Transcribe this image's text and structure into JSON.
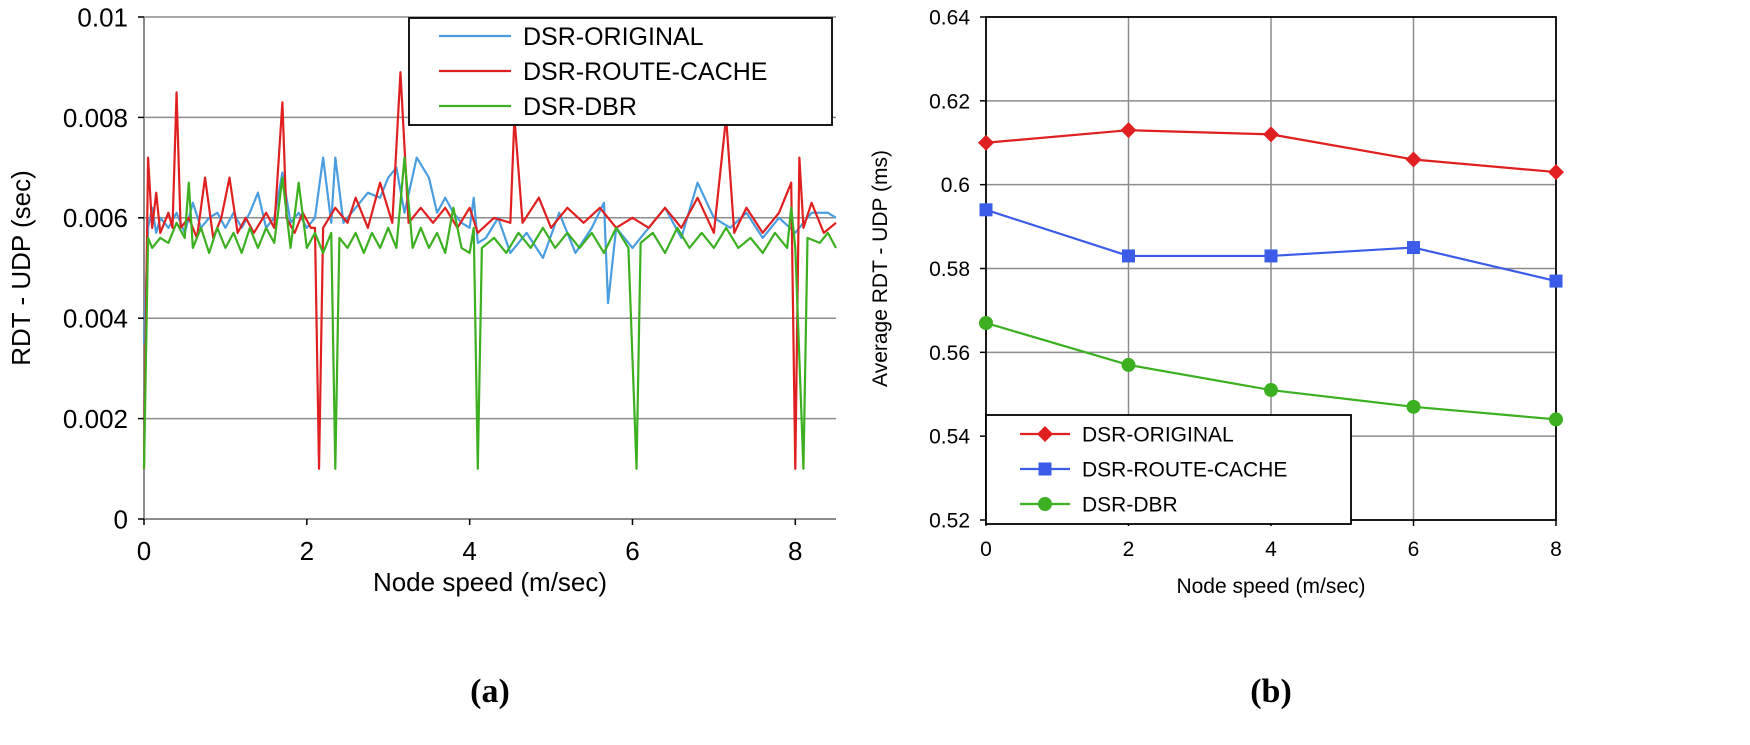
{
  "chart_data": [
    {
      "type": "line",
      "panel_label": "(a)",
      "xlabel": "Node speed (m/sec)",
      "ylabel": "RDT - UDP (sec)",
      "xlim": [
        0,
        8.5
      ],
      "ylim": [
        0,
        0.01
      ],
      "x_ticks": [
        0,
        2,
        4,
        6,
        8
      ],
      "y_ticks": [
        0,
        0.002,
        0.004,
        0.006,
        0.008,
        0.01
      ],
      "x_tick_labels": [
        "0",
        "2",
        "4",
        "6",
        "8"
      ],
      "y_tick_labels": [
        "0",
        "0.002",
        "0.004",
        "0.006",
        "0.008",
        "0.01"
      ],
      "grid": "horizontal",
      "legend_position": "top-right",
      "series": [
        {
          "name": "DSR-ORIGINAL",
          "color": "#4a9ee0",
          "points": [
            [
              0.0,
              0.0035
            ],
            [
              0.05,
              0.0058
            ],
            [
              0.1,
              0.0062
            ],
            [
              0.15,
              0.0057
            ],
            [
              0.2,
              0.006
            ],
            [
              0.3,
              0.0058
            ],
            [
              0.4,
              0.0061
            ],
            [
              0.5,
              0.0057
            ],
            [
              0.6,
              0.0063
            ],
            [
              0.7,
              0.0058
            ],
            [
              0.8,
              0.006
            ],
            [
              0.9,
              0.0061
            ],
            [
              1.0,
              0.0058
            ],
            [
              1.1,
              0.0061
            ],
            [
              1.2,
              0.0058
            ],
            [
              1.3,
              0.0061
            ],
            [
              1.4,
              0.0065
            ],
            [
              1.5,
              0.0058
            ],
            [
              1.6,
              0.006
            ],
            [
              1.7,
              0.0069
            ],
            [
              1.8,
              0.0059
            ],
            [
              1.9,
              0.0061
            ],
            [
              2.0,
              0.0058
            ],
            [
              2.1,
              0.006
            ],
            [
              2.2,
              0.0072
            ],
            [
              2.3,
              0.0059
            ],
            [
              2.35,
              0.0072
            ],
            [
              2.45,
              0.0059
            ],
            [
              2.6,
              0.0062
            ],
            [
              2.75,
              0.0065
            ],
            [
              2.9,
              0.0064
            ],
            [
              3.0,
              0.0068
            ],
            [
              3.1,
              0.007
            ],
            [
              3.2,
              0.0061
            ],
            [
              3.35,
              0.0072
            ],
            [
              3.5,
              0.0068
            ],
            [
              3.6,
              0.0061
            ],
            [
              3.7,
              0.0064
            ],
            [
              3.8,
              0.0061
            ],
            [
              3.9,
              0.0059
            ],
            [
              4.0,
              0.0058
            ],
            [
              4.05,
              0.0064
            ],
            [
              4.1,
              0.0055
            ],
            [
              4.2,
              0.0056
            ],
            [
              4.35,
              0.006
            ],
            [
              4.5,
              0.0053
            ],
            [
              4.7,
              0.0057
            ],
            [
              4.9,
              0.0052
            ],
            [
              5.1,
              0.0061
            ],
            [
              5.3,
              0.0053
            ],
            [
              5.5,
              0.0058
            ],
            [
              5.65,
              0.0063
            ],
            [
              5.7,
              0.0043
            ],
            [
              5.8,
              0.0058
            ],
            [
              6.0,
              0.0054
            ],
            [
              6.2,
              0.0058
            ],
            [
              6.4,
              0.0062
            ],
            [
              6.6,
              0.0056
            ],
            [
              6.8,
              0.0067
            ],
            [
              7.0,
              0.006
            ],
            [
              7.2,
              0.0058
            ],
            [
              7.4,
              0.0061
            ],
            [
              7.6,
              0.0056
            ],
            [
              7.8,
              0.006
            ],
            [
              8.0,
              0.0057
            ],
            [
              8.2,
              0.0061
            ],
            [
              8.4,
              0.0061
            ],
            [
              8.5,
              0.006
            ]
          ]
        },
        {
          "name": "DSR-ROUTE-CACHE",
          "color": "#e02020",
          "points": [
            [
              0.0,
              0.001
            ],
            [
              0.05,
              0.0072
            ],
            [
              0.1,
              0.0058
            ],
            [
              0.15,
              0.0065
            ],
            [
              0.2,
              0.0057
            ],
            [
              0.3,
              0.0061
            ],
            [
              0.35,
              0.0058
            ],
            [
              0.4,
              0.0085
            ],
            [
              0.45,
              0.0058
            ],
            [
              0.55,
              0.006
            ],
            [
              0.65,
              0.0056
            ],
            [
              0.75,
              0.0068
            ],
            [
              0.85,
              0.0056
            ],
            [
              0.95,
              0.006
            ],
            [
              1.05,
              0.0068
            ],
            [
              1.15,
              0.0057
            ],
            [
              1.25,
              0.006
            ],
            [
              1.35,
              0.0057
            ],
            [
              1.5,
              0.0061
            ],
            [
              1.6,
              0.0058
            ],
            [
              1.7,
              0.0083
            ],
            [
              1.75,
              0.006
            ],
            [
              1.85,
              0.0057
            ],
            [
              1.95,
              0.0061
            ],
            [
              2.05,
              0.0058
            ],
            [
              2.1,
              0.0058
            ],
            [
              2.15,
              0.001
            ],
            [
              2.2,
              0.0058
            ],
            [
              2.35,
              0.0062
            ],
            [
              2.5,
              0.0059
            ],
            [
              2.6,
              0.0064
            ],
            [
              2.75,
              0.0058
            ],
            [
              2.9,
              0.0067
            ],
            [
              3.05,
              0.0059
            ],
            [
              3.15,
              0.0089
            ],
            [
              3.25,
              0.0059
            ],
            [
              3.4,
              0.0062
            ],
            [
              3.55,
              0.0059
            ],
            [
              3.7,
              0.0062
            ],
            [
              3.85,
              0.0058
            ],
            [
              4.0,
              0.0062
            ],
            [
              4.1,
              0.0057
            ],
            [
              4.3,
              0.006
            ],
            [
              4.5,
              0.0059
            ],
            [
              4.55,
              0.008
            ],
            [
              4.65,
              0.0059
            ],
            [
              4.85,
              0.0064
            ],
            [
              5.0,
              0.0058
            ],
            [
              5.2,
              0.0062
            ],
            [
              5.4,
              0.0059
            ],
            [
              5.6,
              0.0062
            ],
            [
              5.8,
              0.0058
            ],
            [
              6.0,
              0.006
            ],
            [
              6.2,
              0.0058
            ],
            [
              6.4,
              0.0062
            ],
            [
              6.6,
              0.0058
            ],
            [
              6.8,
              0.0064
            ],
            [
              7.0,
              0.0057
            ],
            [
              7.15,
              0.008
            ],
            [
              7.25,
              0.0057
            ],
            [
              7.4,
              0.0062
            ],
            [
              7.6,
              0.0057
            ],
            [
              7.8,
              0.0061
            ],
            [
              7.95,
              0.0067
            ],
            [
              8.0,
              0.001
            ],
            [
              8.05,
              0.0072
            ],
            [
              8.1,
              0.0058
            ],
            [
              8.2,
              0.0063
            ],
            [
              8.35,
              0.0057
            ],
            [
              8.5,
              0.0059
            ]
          ]
        },
        {
          "name": "DSR-DBR",
          "color": "#3cb020",
          "points": [
            [
              0.0,
              0.001
            ],
            [
              0.05,
              0.0056
            ],
            [
              0.1,
              0.0054
            ],
            [
              0.2,
              0.0056
            ],
            [
              0.3,
              0.0055
            ],
            [
              0.4,
              0.0059
            ],
            [
              0.5,
              0.0056
            ],
            [
              0.55,
              0.0067
            ],
            [
              0.6,
              0.0054
            ],
            [
              0.7,
              0.0058
            ],
            [
              0.8,
              0.0053
            ],
            [
              0.9,
              0.0058
            ],
            [
              1.0,
              0.0054
            ],
            [
              1.1,
              0.0057
            ],
            [
              1.2,
              0.0053
            ],
            [
              1.3,
              0.0058
            ],
            [
              1.4,
              0.0054
            ],
            [
              1.5,
              0.0058
            ],
            [
              1.6,
              0.0055
            ],
            [
              1.7,
              0.0068
            ],
            [
              1.8,
              0.0054
            ],
            [
              1.9,
              0.0067
            ],
            [
              2.0,
              0.0054
            ],
            [
              2.1,
              0.0057
            ],
            [
              2.2,
              0.0053
            ],
            [
              2.3,
              0.0057
            ],
            [
              2.35,
              0.001
            ],
            [
              2.4,
              0.0056
            ],
            [
              2.5,
              0.0054
            ],
            [
              2.6,
              0.0057
            ],
            [
              2.7,
              0.0053
            ],
            [
              2.8,
              0.0057
            ],
            [
              2.9,
              0.0054
            ],
            [
              3.0,
              0.0058
            ],
            [
              3.1,
              0.0054
            ],
            [
              3.2,
              0.0072
            ],
            [
              3.3,
              0.0054
            ],
            [
              3.4,
              0.0058
            ],
            [
              3.5,
              0.0054
            ],
            [
              3.6,
              0.0057
            ],
            [
              3.7,
              0.0053
            ],
            [
              3.8,
              0.0062
            ],
            [
              3.9,
              0.0054
            ],
            [
              4.0,
              0.0053
            ],
            [
              4.05,
              0.0058
            ],
            [
              4.1,
              0.001
            ],
            [
              4.15,
              0.0054
            ],
            [
              4.3,
              0.0056
            ],
            [
              4.45,
              0.0053
            ],
            [
              4.6,
              0.0057
            ],
            [
              4.75,
              0.0054
            ],
            [
              4.9,
              0.0058
            ],
            [
              5.05,
              0.0054
            ],
            [
              5.2,
              0.0057
            ],
            [
              5.35,
              0.0054
            ],
            [
              5.5,
              0.0057
            ],
            [
              5.65,
              0.0053
            ],
            [
              5.8,
              0.0058
            ],
            [
              5.95,
              0.0054
            ],
            [
              6.05,
              0.001
            ],
            [
              6.1,
              0.0055
            ],
            [
              6.25,
              0.0057
            ],
            [
              6.4,
              0.0053
            ],
            [
              6.55,
              0.0058
            ],
            [
              6.7,
              0.0054
            ],
            [
              6.85,
              0.0057
            ],
            [
              7.0,
              0.0054
            ],
            [
              7.15,
              0.0058
            ],
            [
              7.3,
              0.0054
            ],
            [
              7.45,
              0.0056
            ],
            [
              7.6,
              0.0053
            ],
            [
              7.75,
              0.0057
            ],
            [
              7.9,
              0.0054
            ],
            [
              7.95,
              0.0062
            ],
            [
              8.0,
              0.0054
            ],
            [
              8.1,
              0.001
            ],
            [
              8.15,
              0.0056
            ],
            [
              8.3,
              0.0055
            ],
            [
              8.4,
              0.0057
            ],
            [
              8.5,
              0.0054
            ]
          ]
        }
      ]
    },
    {
      "type": "line",
      "panel_label": "(b)",
      "xlabel": "Node speed (m/sec)",
      "ylabel": "Average RDT - UDP (ms)",
      "xlim": [
        0,
        8
      ],
      "ylim": [
        0.52,
        0.64
      ],
      "x_ticks": [
        0,
        2,
        4,
        6,
        8
      ],
      "y_ticks": [
        0.52,
        0.54,
        0.56,
        0.58,
        0.6,
        0.62,
        0.64
      ],
      "x_tick_labels": [
        "0",
        "2",
        "4",
        "6",
        "8"
      ],
      "y_tick_labels": [
        "0.52",
        "0.54",
        "0.56",
        "0.58",
        "0.6",
        "0.62",
        "0.64"
      ],
      "grid": "both",
      "legend_position": "bottom-left",
      "series": [
        {
          "name": "DSR-ORIGINAL",
          "color": "#e02020",
          "marker": "diamond",
          "x": [
            0,
            2,
            4,
            6,
            8
          ],
          "values": [
            0.61,
            0.613,
            0.612,
            0.606,
            0.603
          ]
        },
        {
          "name": "DSR-ROUTE-CACHE",
          "color": "#3b5ce8",
          "marker": "square",
          "x": [
            0,
            2,
            4,
            6,
            8
          ],
          "values": [
            0.594,
            0.583,
            0.583,
            0.585,
            0.577
          ]
        },
        {
          "name": "DSR-DBR",
          "color": "#3cb020",
          "marker": "circle",
          "x": [
            0,
            2,
            4,
            6,
            8
          ],
          "values": [
            0.567,
            0.557,
            0.551,
            0.547,
            0.544
          ]
        }
      ]
    }
  ]
}
